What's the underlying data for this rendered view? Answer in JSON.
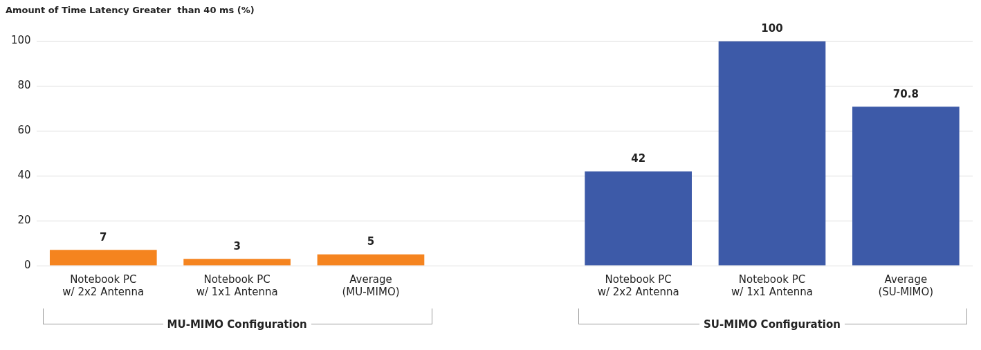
{
  "chart_data": {
    "type": "bar",
    "title": "Amount of Time Latency Greater  than 40 ms (%)",
    "categories": [
      "Notebook PC\nw/ 2x2 Antenna",
      "Notebook PC\nw/ 1x1 Antenna",
      "Average\n(MU-MIMO)",
      null,
      "Notebook PC\nw/ 2x2 Antenna",
      "Notebook PC\nw/ 1x1 Antenna",
      "Average\n(SU-MIMO)"
    ],
    "values": [
      7,
      3,
      5,
      null,
      42,
      100,
      70.8
    ],
    "colors": [
      "#f5841f",
      "#f5841f",
      "#f5841f",
      "#ffffff",
      "#3d5aa8",
      "#3d5aa8",
      "#3d5aa8"
    ],
    "ylim": [
      0,
      100
    ],
    "yticks": [
      0,
      20,
      40,
      60,
      80,
      100
    ],
    "grid": "y",
    "data_labels": true,
    "legend": false,
    "annotations": [
      "MU-MIMO Configuration",
      "SU-MIMO Configuration"
    ]
  }
}
